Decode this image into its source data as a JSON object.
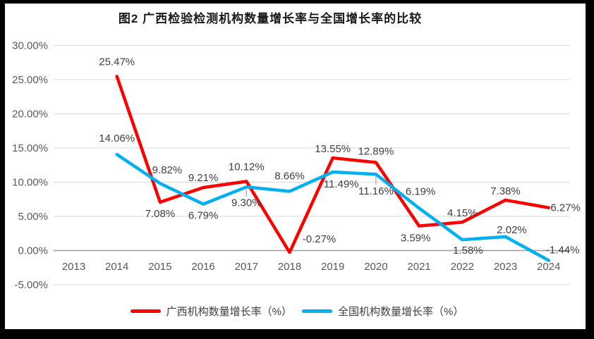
{
  "chart_data": {
    "type": "line",
    "title": "图2 广西检验检测机构数量增长率与全国增长率的比较",
    "categories": [
      "2013",
      "2014",
      "2015",
      "2016",
      "2017",
      "2018",
      "2019",
      "2020",
      "2021",
      "2022",
      "2023",
      "2024"
    ],
    "y_ticks": [
      30,
      25,
      20,
      15,
      10,
      5,
      0,
      -5
    ],
    "ylim": [
      -5,
      30
    ],
    "y_tick_suffix": "%",
    "grid": "horizontal",
    "legend_position": "bottom",
    "colors": {
      "gridline": "#d9d9d9",
      "axis_line": "#9b9b9b",
      "tick_text": "#595959",
      "data_label_text": "#3f3f3f",
      "leader_line": "#a6a6a6"
    },
    "series": [
      {
        "id": "guangxi",
        "name": "广西机构数量增长率（%）",
        "color": "#ff0000",
        "x_start_index": 1,
        "values": [
          25.47,
          7.08,
          9.21,
          10.12,
          -0.27,
          13.55,
          12.89,
          3.59,
          4.15,
          7.38,
          6.27
        ],
        "label_offsets": [
          [
            0,
            -21
          ],
          [
            0,
            16
          ],
          [
            0,
            -14
          ],
          [
            0,
            -21
          ],
          [
            42,
            -19
          ],
          [
            0,
            -13
          ],
          [
            0,
            -16
          ],
          [
            -5,
            17
          ],
          [
            0,
            -13
          ],
          [
            0,
            -13
          ],
          [
            24,
            0
          ]
        ],
        "label_leaders": [
          false,
          false,
          false,
          false,
          false,
          false,
          false,
          false,
          false,
          false,
          false
        ]
      },
      {
        "id": "national",
        "name": "全国机构数量增长率（%）",
        "color": "#00b0f0",
        "x_start_index": 1,
        "values": [
          14.06,
          9.82,
          6.79,
          9.3,
          8.66,
          11.49,
          11.16,
          6.19,
          1.58,
          2.02,
          -1.44
        ],
        "label_offsets": [
          [
            0,
            -23
          ],
          [
            10,
            -19
          ],
          [
            0,
            16
          ],
          [
            0,
            22
          ],
          [
            0,
            -22
          ],
          [
            12,
            17
          ],
          [
            0,
            24
          ],
          [
            2,
            -24
          ],
          [
            8,
            15
          ],
          [
            9,
            -10
          ],
          [
            20,
            -15
          ]
        ],
        "label_leaders": [
          false,
          false,
          false,
          true,
          false,
          false,
          true,
          false,
          false,
          false,
          false
        ]
      }
    ]
  }
}
